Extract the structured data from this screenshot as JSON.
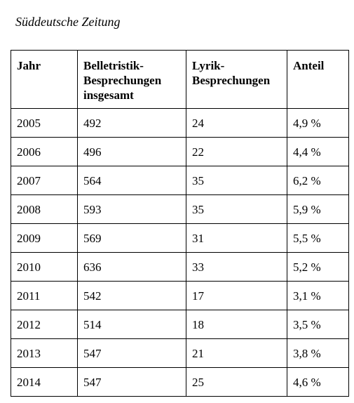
{
  "caption": "Süddeutsche Zeitung",
  "table": {
    "headers": [
      [
        "Jahr"
      ],
      [
        "Belletristik-",
        "Besprechungen",
        "insgesamt"
      ],
      [
        "Lyrik-",
        "Besprechungen"
      ],
      [
        "Anteil"
      ]
    ],
    "rows": [
      [
        "2005",
        "492",
        "24",
        "4,9 %"
      ],
      [
        "2006",
        "496",
        "22",
        "4,4 %"
      ],
      [
        "2007",
        "564",
        "35",
        "6,2 %"
      ],
      [
        "2008",
        "593",
        "35",
        "5,9 %"
      ],
      [
        "2009",
        "569",
        "31",
        "5,5 %"
      ],
      [
        "2010",
        "636",
        "33",
        "5,2 %"
      ],
      [
        "2011",
        "542",
        "17",
        "3,1 %"
      ],
      [
        "2012",
        "514",
        "18",
        "3,5 %"
      ],
      [
        "2013",
        "547",
        "21",
        "3,8 %"
      ],
      [
        "2014",
        "547",
        "25",
        "4,6 %"
      ]
    ]
  }
}
